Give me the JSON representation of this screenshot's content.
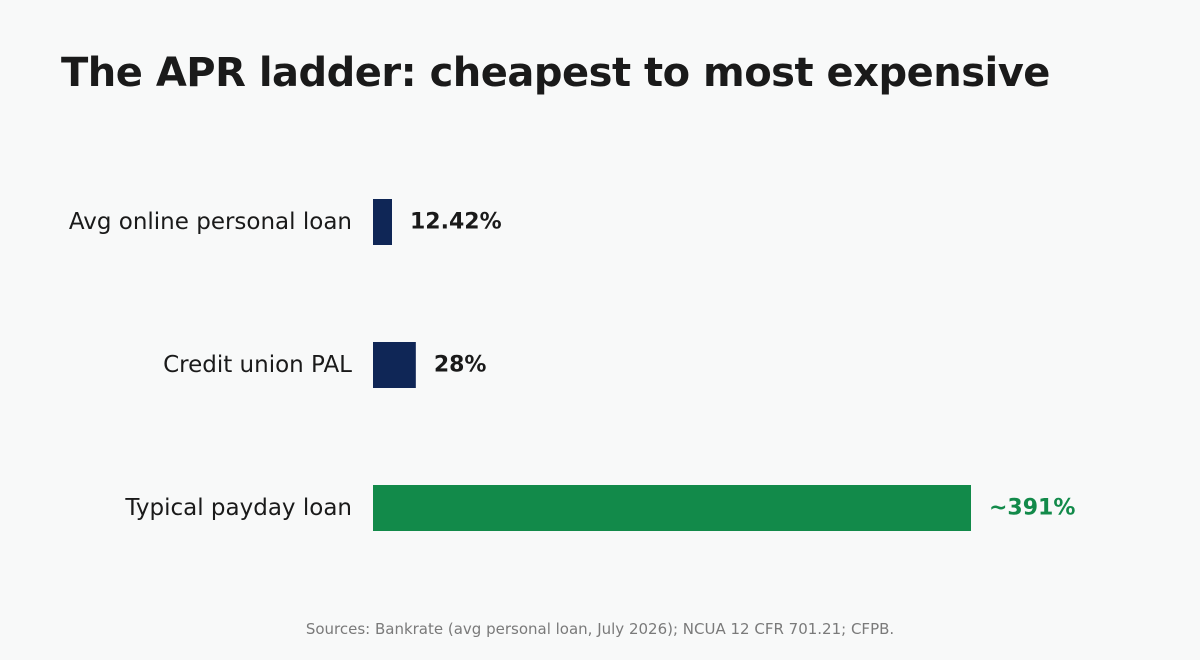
{
  "chart_data": {
    "type": "bar",
    "orientation": "horizontal",
    "title": "The APR ladder: cheapest to most expensive",
    "xlabel": "",
    "ylabel": "",
    "unit": "% APR",
    "grid": false,
    "xlim": [
      0,
      391
    ],
    "categories": [
      "Avg online personal loan",
      "Credit union PAL",
      "Typical payday loan"
    ],
    "values": [
      12.42,
      28,
      391
    ],
    "value_labels": [
      "12.42%",
      "28%",
      "~391%"
    ],
    "bar_colors": [
      "#0f2656",
      "#0f2656",
      "#128a4a"
    ],
    "label_colors": [
      "#1a1a1a",
      "#1a1a1a",
      "#128a4a"
    ],
    "source": "Sources: Bankrate (avg personal loan, July 2026); NCUA 12 CFR 701.21; CFPB."
  }
}
